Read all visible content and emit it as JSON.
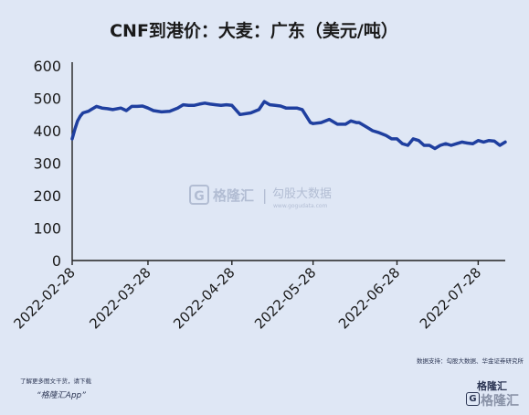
{
  "chart_data": {
    "type": "line",
    "title": "CNF到港价：大麦：广东（美元/吨）",
    "xlabel": "",
    "ylabel": "",
    "ylim": [
      0,
      600
    ],
    "yticks": [
      0,
      100,
      200,
      300,
      400,
      500,
      600
    ],
    "xtick_labels": [
      "2022-02-28",
      "2022-03-28",
      "2022-04-28",
      "2022-05-28",
      "2022-06-28",
      "2022-07-28"
    ],
    "grid": false,
    "legend": "none",
    "line_color": "#1f3f9f",
    "series": [
      {
        "x": [
          "2022-02-28",
          "2022-03-01",
          "2022-03-02",
          "2022-03-03",
          "2022-03-04",
          "2022-03-06",
          "2022-03-07",
          "2022-03-09",
          "2022-03-11",
          "2022-03-13",
          "2022-03-15",
          "2022-03-18",
          "2022-03-20",
          "2022-03-22",
          "2022-03-24",
          "2022-03-26",
          "2022-03-28",
          "2022-03-30",
          "2022-04-02",
          "2022-04-05",
          "2022-04-08",
          "2022-04-10",
          "2022-04-12",
          "2022-04-14",
          "2022-04-16",
          "2022-04-18",
          "2022-04-20",
          "2022-04-22",
          "2022-04-24",
          "2022-04-26",
          "2022-04-28",
          "2022-05-01",
          "2022-05-05",
          "2022-05-08",
          "2022-05-10",
          "2022-05-12",
          "2022-05-14",
          "2022-05-16",
          "2022-05-18",
          "2022-05-20",
          "2022-05-22",
          "2022-05-24",
          "2022-05-27",
          "2022-05-28",
          "2022-05-31",
          "2022-06-03",
          "2022-06-06",
          "2022-06-09",
          "2022-06-11",
          "2022-06-13",
          "2022-06-14",
          "2022-06-15",
          "2022-06-17",
          "2022-06-19",
          "2022-06-21",
          "2022-06-24",
          "2022-06-26",
          "2022-06-28",
          "2022-06-30",
          "2022-07-02",
          "2022-07-04",
          "2022-07-06",
          "2022-07-08",
          "2022-07-10",
          "2022-07-12",
          "2022-07-14",
          "2022-07-16",
          "2022-07-18",
          "2022-07-20",
          "2022-07-22",
          "2022-07-24",
          "2022-07-26",
          "2022-07-28",
          "2022-07-30",
          "2022-08-01",
          "2022-08-03",
          "2022-08-05",
          "2022-08-07"
        ],
        "values": [
          375,
          405,
          430,
          445,
          455,
          460,
          465,
          475,
          470,
          468,
          465,
          470,
          462,
          475,
          475,
          476,
          470,
          462,
          458,
          460,
          470,
          480,
          478,
          478,
          482,
          485,
          482,
          480,
          478,
          480,
          478,
          450,
          455,
          465,
          490,
          480,
          478,
          476,
          470,
          470,
          470,
          465,
          425,
          422,
          425,
          435,
          420,
          420,
          430,
          425,
          425,
          420,
          410,
          400,
          395,
          385,
          375,
          375,
          360,
          355,
          375,
          370,
          355,
          355,
          345,
          355,
          360,
          355,
          360,
          365,
          362,
          360,
          370,
          365,
          370,
          368,
          355,
          365
        ]
      }
    ]
  },
  "watermark": {
    "brand": "格隆汇",
    "divider": "|",
    "secondary": "勾股大数据",
    "url": "www.gogudata.com"
  },
  "source_note": "数据支持：勾股大数据、华金证券研究所",
  "footer": {
    "line1": "了解更多图文干货，请下载",
    "line2": "“格隆汇App”",
    "logo_text": "格隆汇",
    "logo_box_char": "G"
  }
}
